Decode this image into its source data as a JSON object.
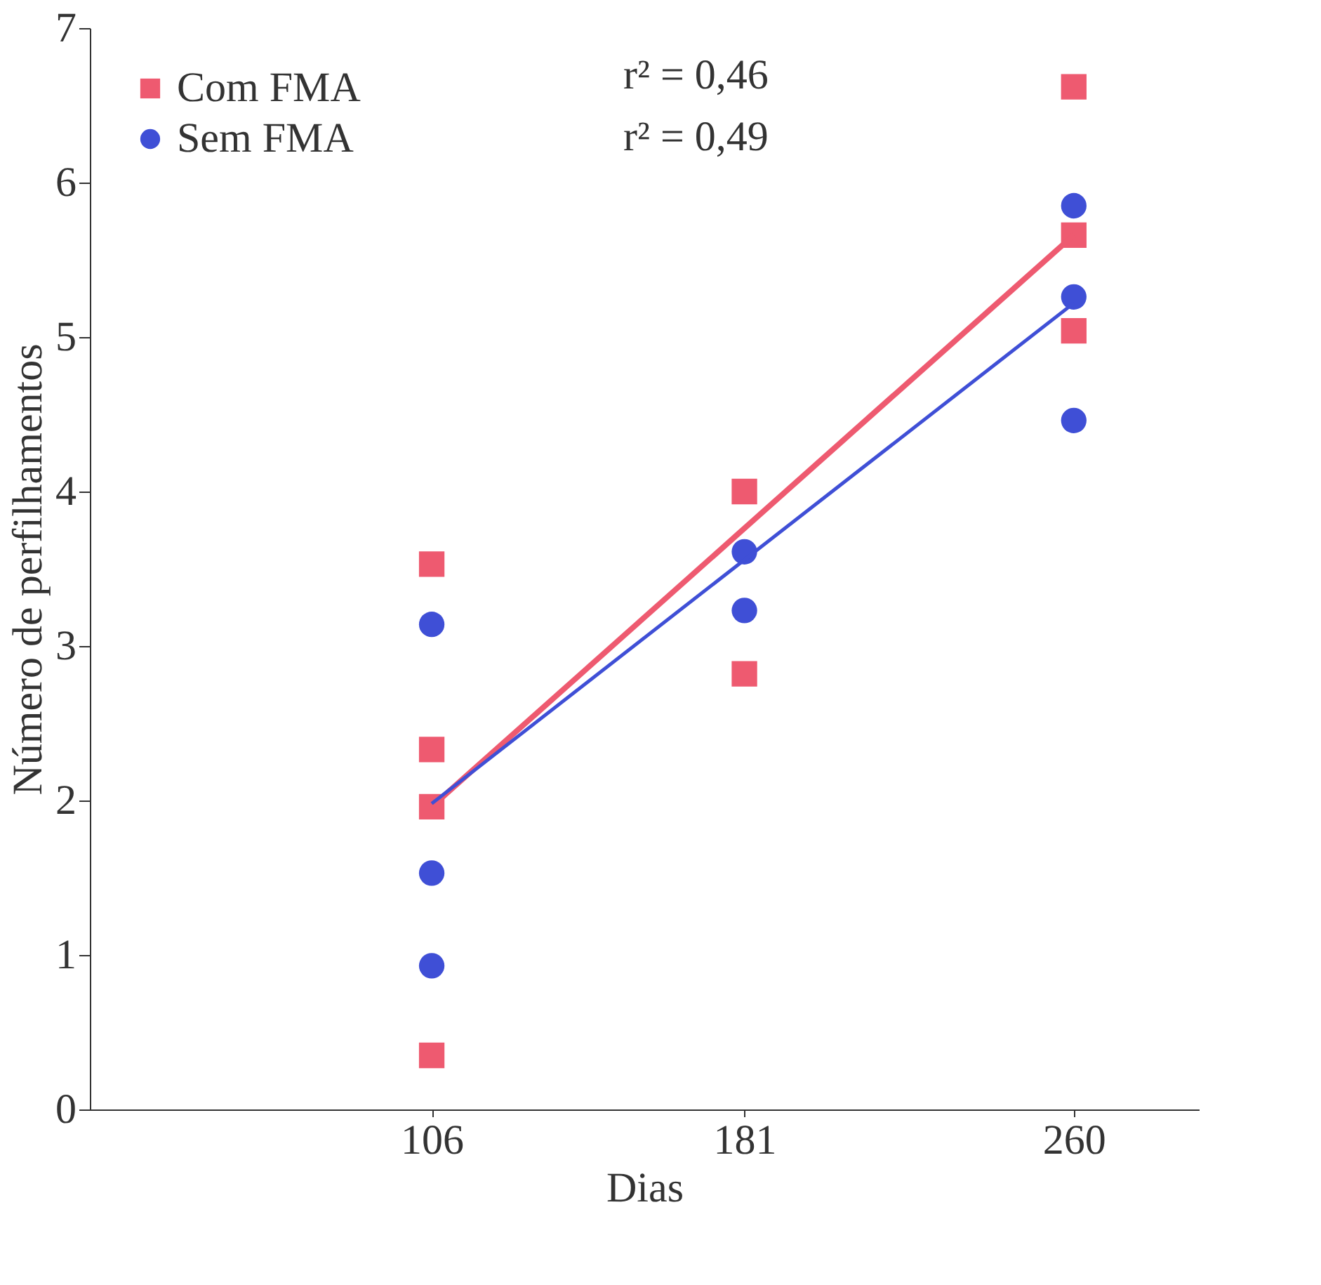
{
  "chart_data": {
    "type": "scatter",
    "xlabel": "Dias",
    "ylabel": "Número de perfilhamentos",
    "xlim": [
      24,
      290
    ],
    "xticks": [
      106,
      181,
      260
    ],
    "ylim": [
      0,
      7
    ],
    "yticks": [
      0,
      1,
      2,
      3,
      4,
      5,
      6,
      7
    ],
    "grid": false,
    "legend": "top left",
    "series": [
      {
        "name": "Com FMA",
        "marker": "square",
        "color": "#ee5a70",
        "x": [
          106,
          106,
          106,
          106,
          181,
          181,
          260,
          260,
          260
        ],
        "values": [
          3.53,
          2.33,
          1.96,
          0.35,
          4.0,
          2.82,
          6.62,
          5.66,
          5.04
        ]
      },
      {
        "name": "Sem FMA",
        "marker": "circle",
        "color": "#3f4fd6",
        "x": [
          106,
          106,
          106,
          181,
          181,
          260,
          260,
          260
        ],
        "values": [
          3.14,
          1.53,
          0.93,
          3.61,
          3.23,
          5.85,
          5.26,
          4.46
        ]
      },
      {
        "type": "line",
        "color": "#ee5a70",
        "x": [
          106,
          260
        ],
        "values": [
          1.96,
          5.66
        ]
      },
      {
        "type": "line",
        "color": "#3f4fd6",
        "x": [
          106,
          260
        ],
        "values": [
          1.98,
          5.22
        ]
      }
    ],
    "annotations": [
      "r² = 0,46",
      "r² = 0,49"
    ]
  }
}
